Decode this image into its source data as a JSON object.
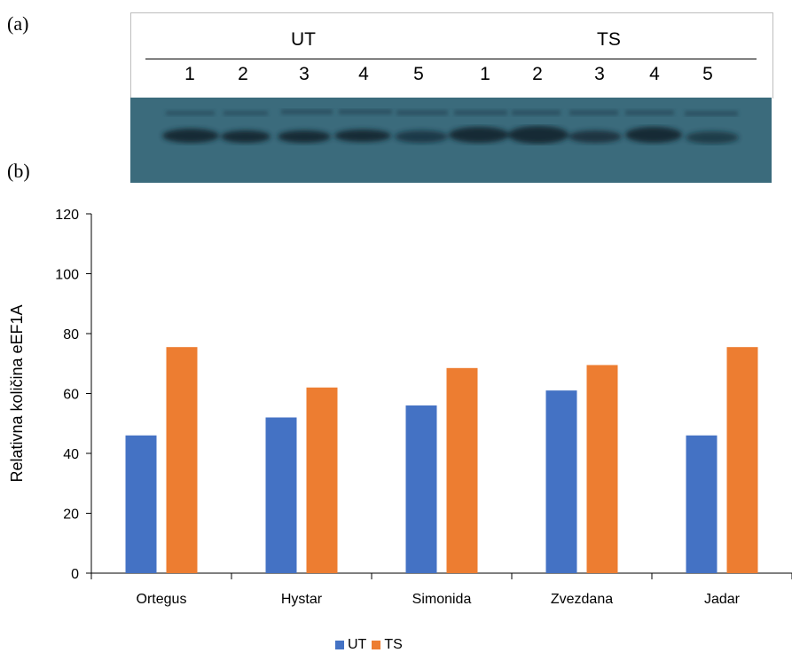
{
  "panels": {
    "a": "(a)",
    "b": "(b)"
  },
  "blot": {
    "groups": [
      "UT",
      "TS"
    ],
    "lanes": [
      "1",
      "2",
      "3",
      "4",
      "5",
      "1",
      "2",
      "3",
      "4",
      "5"
    ]
  },
  "colors": {
    "UT": "#4472c4",
    "TS": "#ed7d31",
    "blot_bg": "#3e6e80",
    "band": "#152b35"
  },
  "chart_data": {
    "type": "bar",
    "title": "",
    "xlabel": "",
    "ylabel": "Relativna količina eEF1A",
    "categories": [
      "Ortegus",
      "Hystar",
      "Simonida",
      "Zvezdana",
      "Jadar"
    ],
    "series": [
      {
        "name": "UT",
        "values": [
          46,
          52,
          56,
          61,
          46
        ]
      },
      {
        "name": "TS",
        "values": [
          75.5,
          62,
          68.5,
          69.5,
          75.5
        ]
      }
    ],
    "ylim": [
      0,
      120
    ],
    "yticks": [
      0,
      20,
      40,
      60,
      80,
      100,
      120
    ],
    "grid": false,
    "legend": "bottom"
  }
}
